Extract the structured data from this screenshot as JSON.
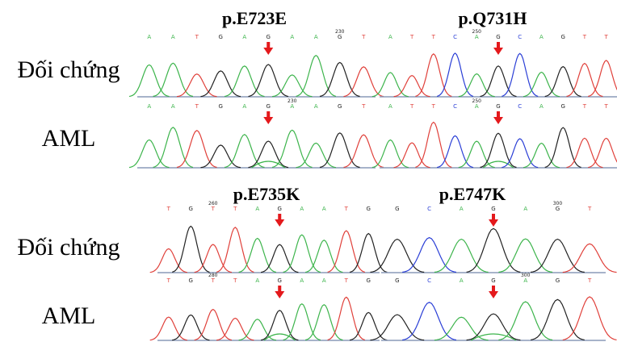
{
  "row_labels": [
    "Đối chứng",
    "AML",
    "Đối chứng",
    "AML"
  ],
  "panels": [
    {
      "title": "p.E723E",
      "tracks": [
        {
          "bases": [
            "A",
            "A",
            "T",
            "G",
            "A",
            "G",
            "A",
            "A",
            "G",
            "T"
          ],
          "position": "230"
        },
        {
          "bases": [
            "A",
            "A",
            "T",
            "G",
            "A",
            "G",
            "A",
            "A",
            "G",
            "T"
          ],
          "position": "230"
        }
      ]
    },
    {
      "title": "p.Q731H",
      "tracks": [
        {
          "bases": [
            "A",
            "T",
            "T",
            "C",
            "A",
            "G",
            "C",
            "A",
            "G",
            "T",
            "T"
          ],
          "position": "250"
        },
        {
          "bases": [
            "A",
            "T",
            "T",
            "C",
            "A",
            "G",
            "C",
            "A",
            "G",
            "T",
            "T"
          ],
          "position": "250"
        }
      ]
    },
    {
      "title": "p.E735K",
      "tracks": [
        {
          "bases": [
            "T",
            "G",
            "T",
            "T",
            "A",
            "G",
            "A",
            "A",
            "T",
            "G"
          ],
          "position": "260"
        },
        {
          "bases": [
            "T",
            "G",
            "T",
            "T",
            "A",
            "G",
            "A",
            "A",
            "T",
            "G"
          ],
          "position": "280"
        }
      ]
    },
    {
      "title": "p.E747K",
      "tracks": [
        {
          "bases": [
            "G",
            "C",
            "A",
            "G",
            "A",
            "G",
            "T"
          ],
          "position": "300"
        },
        {
          "bases": [
            "G",
            "C",
            "A",
            "G",
            "A",
            "G",
            "T"
          ],
          "position": "300"
        }
      ]
    }
  ]
}
